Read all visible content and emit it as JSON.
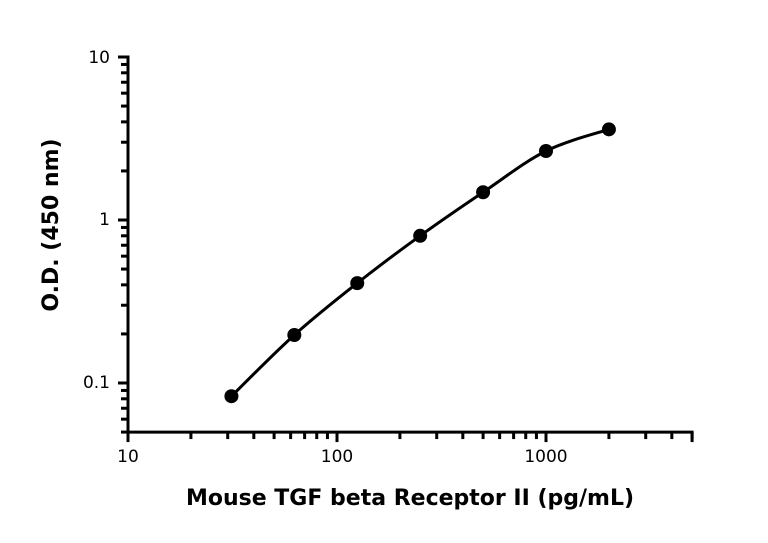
{
  "chart_data": {
    "type": "scatter",
    "title": "",
    "xlabel": "Mouse TGF beta Receptor II (pg/mL)",
    "ylabel": "O.D. (450 nm)",
    "xscale": "log",
    "yscale": "log",
    "xlim": [
      10,
      5000
    ],
    "ylim": [
      0.05,
      10
    ],
    "xticks": [
      10,
      100,
      1000
    ],
    "xtick_labels": [
      "10",
      "100",
      "1000"
    ],
    "yticks": [
      0.1,
      1,
      10
    ],
    "ytick_labels": [
      "0.1",
      "1",
      "10"
    ],
    "grid": false,
    "legend": "none",
    "fit_curve": true,
    "marker_color": "#000000",
    "line_color": "#000000",
    "series": [
      {
        "x": [
          31.25,
          62.5,
          125,
          250,
          500,
          1000,
          2000
        ],
        "y": [
          0.083,
          0.197,
          0.41,
          0.8,
          1.48,
          2.65,
          3.6
        ]
      }
    ]
  }
}
